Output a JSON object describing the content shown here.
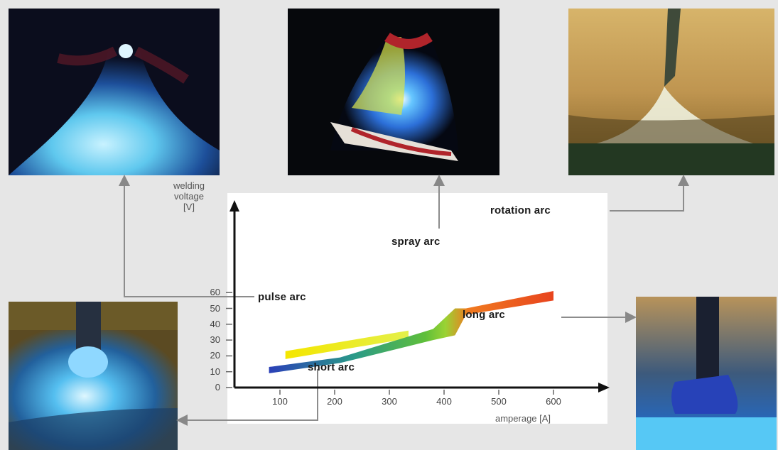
{
  "chart_data": {
    "type": "area",
    "ylabel_lines": [
      "welding",
      "voltage",
      "[V]"
    ],
    "xlabel": "amperage [A]",
    "x_ticks": [
      100,
      200,
      300,
      400,
      500,
      600
    ],
    "y_ticks": [
      0,
      10,
      20,
      30,
      40,
      50,
      60
    ],
    "xlim": [
      0,
      670
    ],
    "ylim": [
      0,
      66
    ],
    "series": [
      {
        "name": "pulse arc",
        "band_x": [
          110,
          335
        ],
        "band_center": [
          20.5,
          33.5
        ],
        "band_halfwidth": 2.5,
        "colors": [
          "#f4e600",
          "#e4f04a"
        ]
      },
      {
        "name": "short arc",
        "band_x": [
          80,
          210,
          380,
          420,
          440,
          600
        ],
        "band_lower": [
          9,
          15.5,
          30,
          33,
          46,
          55
        ],
        "band_upper": [
          13,
          19,
          37,
          50,
          50,
          61
        ],
        "colors": [
          "#2a3fb8",
          "#2a9a88",
          "#5fbf3a",
          "#9ad334",
          "#f07a1f",
          "#e8441e"
        ]
      }
    ],
    "annotations": [
      "pulse arc",
      "spray arc",
      "rotation arc",
      "long arc",
      "short arc"
    ]
  },
  "labels": {
    "pulse": "pulse arc",
    "spray": "spray arc",
    "rotation": "rotation arc",
    "long": "long arc",
    "short": "short arc"
  }
}
